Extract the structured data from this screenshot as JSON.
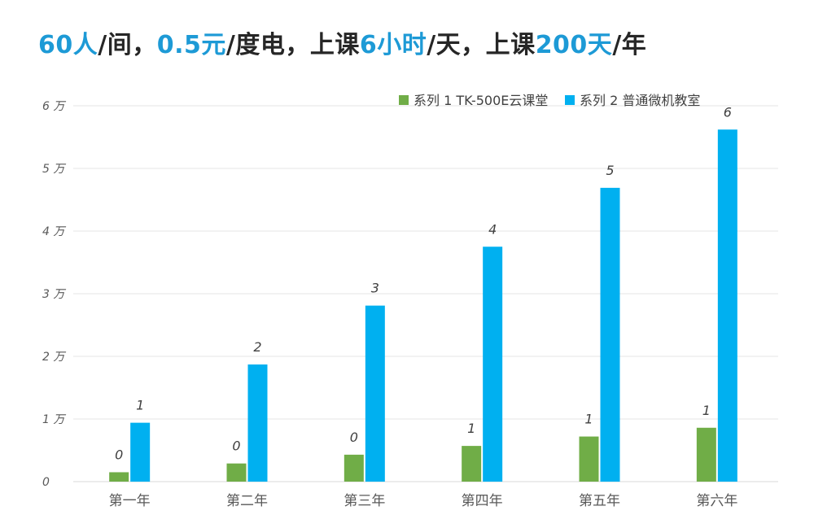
{
  "title": {
    "parts": [
      {
        "text": "60人",
        "hl": true
      },
      {
        "text": "/间，",
        "hl": false
      },
      {
        "text": "0.5元",
        "hl": true
      },
      {
        "text": "/度电，上课",
        "hl": false
      },
      {
        "text": "6小时",
        "hl": true
      },
      {
        "text": "/天，上课",
        "hl": false
      },
      {
        "text": "200天",
        "hl": true
      },
      {
        "text": "/年",
        "hl": false
      }
    ]
  },
  "colors": {
    "highlight": "#1d9ad6",
    "series1": "#70ad47",
    "series2": "#00b0f0",
    "grid": "#e6e6e6",
    "text": "#595959"
  },
  "chart_data": {
    "type": "bar",
    "categories": [
      "第一年",
      "第二年",
      "第三年",
      "第四年",
      "第五年",
      "第六年"
    ],
    "series": [
      {
        "name": "系列 1 TK-500E云课堂",
        "values": [
          0.15,
          0.29,
          0.43,
          0.57,
          0.72,
          0.86
        ],
        "labels": [
          "0",
          "0",
          "0",
          "1",
          "1",
          "1"
        ]
      },
      {
        "name": "系列 2 普通微机教室",
        "values": [
          0.94,
          1.87,
          2.81,
          3.75,
          4.69,
          5.62
        ],
        "labels": [
          "1",
          "2",
          "3",
          "4",
          "5",
          "6"
        ]
      }
    ],
    "yticks": [
      "0",
      "1 万",
      "2 万",
      "3 万",
      "4 万",
      "5 万",
      "6 万"
    ],
    "ylim": [
      0,
      6
    ],
    "grid": true,
    "legend": "top-right",
    "xlabel": "",
    "ylabel": ""
  }
}
